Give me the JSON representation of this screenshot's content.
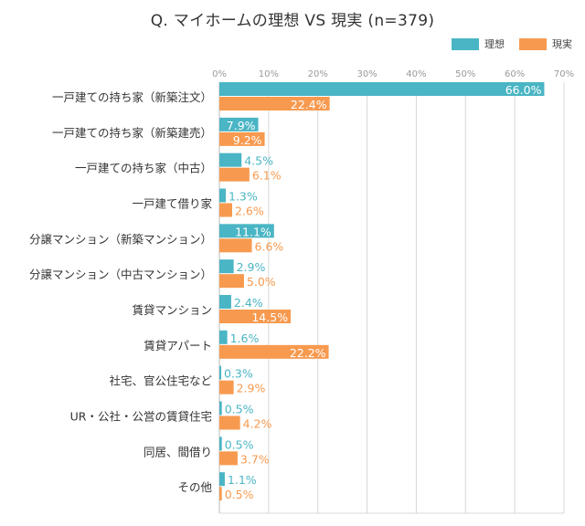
{
  "chart_data": {
    "type": "bar",
    "orientation": "horizontal",
    "title": "Q. マイホームの理想 VS 現実 (n=379)",
    "xlabel": "",
    "ylabel": "",
    "xlim": [
      0,
      70
    ],
    "ticks": [
      "0%",
      "10%",
      "20%",
      "30%",
      "40%",
      "50%",
      "60%",
      "70%"
    ],
    "tick_values": [
      0,
      10,
      20,
      30,
      40,
      50,
      60,
      70
    ],
    "grid": true,
    "legend_position": "top-right",
    "categories": [
      "一戸建ての持ち家（新築注文）",
      "一戸建ての持ち家（新築建売）",
      "一戸建ての持ち家（中古）",
      "一戸建て借り家",
      "分譲マンション（新築マンション）",
      "分譲マンション（中古マンション）",
      "賃貸マンション",
      "賃貸アパート",
      "社宅、官公住宅など",
      "UR・公社・公営の賃貸住宅",
      "同居、間借り",
      "その他"
    ],
    "series": [
      {
        "name": "理想",
        "color": "#4ab5c4",
        "values": [
          66.0,
          7.9,
          4.5,
          1.3,
          11.1,
          2.9,
          2.4,
          1.6,
          0.3,
          0.5,
          0.5,
          1.1
        ],
        "labels": [
          "66.0%",
          "7.9%",
          "4.5%",
          "1.3%",
          "11.1%",
          "2.9%",
          "2.4%",
          "1.6%",
          "0.3%",
          "0.5%",
          "0.5%",
          "1.1%"
        ]
      },
      {
        "name": "現実",
        "color": "#f79a4f",
        "values": [
          22.4,
          9.2,
          6.1,
          2.6,
          6.6,
          5.0,
          14.5,
          22.2,
          2.9,
          4.2,
          3.7,
          0.5
        ],
        "labels": [
          "22.4%",
          "9.2%",
          "6.1%",
          "2.6%",
          "6.6%",
          "5.0%",
          "14.5%",
          "22.2%",
          "2.9%",
          "4.2%",
          "3.7%",
          "0.5%"
        ]
      }
    ]
  },
  "legend": {
    "items": [
      {
        "label": "理想",
        "color": "#4ab5c4"
      },
      {
        "label": "現実",
        "color": "#f79a4f"
      }
    ]
  }
}
